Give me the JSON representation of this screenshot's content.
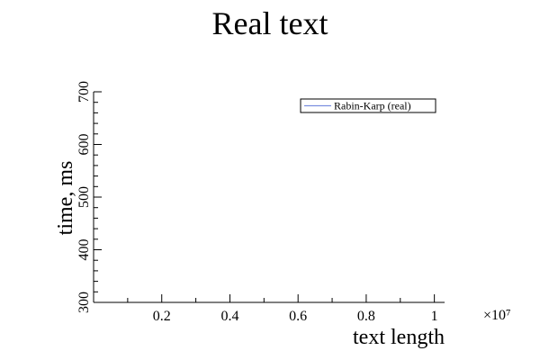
{
  "chart_data": {
    "type": "line",
    "title": "Real text",
    "xlabel": "text length",
    "ylabel": "time, ms",
    "x_multiplier_label": "×10⁷",
    "xlim": [
      0,
      1.03
    ],
    "ylim": [
      300,
      700
    ],
    "x_ticks": [
      0.2,
      0.4,
      0.6,
      0.8,
      1
    ],
    "x_tick_labels": [
      "0.2",
      "0.4",
      "0.6",
      "0.8",
      "1"
    ],
    "x_minor_ticks": [
      0.1,
      0.3,
      0.5,
      0.7,
      0.9
    ],
    "y_ticks": [
      300,
      400,
      500,
      600,
      700
    ],
    "y_tick_labels": [
      "300",
      "400",
      "500",
      "600",
      "700"
    ],
    "y_minor_step": 20,
    "grid": false,
    "legend_position": "top-right",
    "series": [
      {
        "name": "Rabin-Karp (real)",
        "color": "#7b8fe0",
        "x": [],
        "y": []
      }
    ]
  }
}
